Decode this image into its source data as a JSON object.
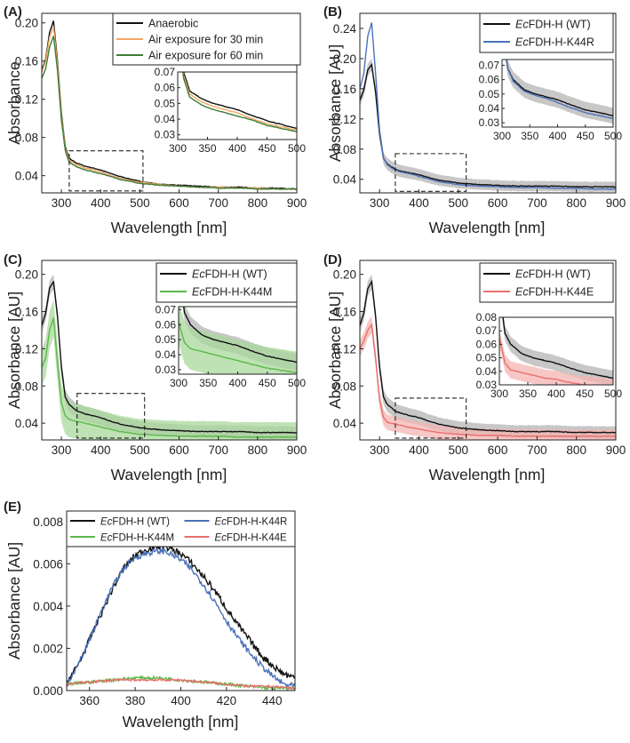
{
  "figure": {
    "colors": {
      "black": "#111111",
      "orange": "#f0a862",
      "darkgreen": "#3f7d35",
      "blue": "#4a72b8",
      "green": "#5cb84a",
      "red": "#e8706c",
      "band": "#b4b4b4",
      "greenband": "#a9d89c",
      "redband": "#f3b4b1"
    }
  },
  "chart_data": [
    {
      "panel": "(A)",
      "type": "line",
      "xlabel": "Wavelength [nm]",
      "ylabel": "Absorbance",
      "xlim": [
        250,
        900
      ],
      "ylim": [
        0.022,
        0.21
      ],
      "xticks": [
        300,
        400,
        500,
        600,
        700,
        800,
        900
      ],
      "xtick_labels": [
        "300",
        "400",
        "500",
        "600",
        "700",
        "800",
        "900"
      ],
      "yticks": [
        0.04,
        0.08,
        0.12,
        0.16,
        0.2
      ],
      "ytick_labels": [
        "0.04",
        "0.08",
        "0.12",
        "0.16",
        "0.20"
      ],
      "legend_position": "top-right",
      "series": [
        {
          "name": "Anaerobic",
          "color_key": "black",
          "x": [
            250,
            260,
            270,
            280,
            290,
            300,
            310,
            320,
            340,
            360,
            380,
            400,
            420,
            450,
            500,
            550,
            600,
            650,
            700,
            750,
            800,
            850,
            900
          ],
          "y": [
            0.15,
            0.162,
            0.19,
            0.202,
            0.16,
            0.105,
            0.07,
            0.058,
            0.053,
            0.05,
            0.048,
            0.046,
            0.043,
            0.039,
            0.034,
            0.031,
            0.03,
            0.029,
            0.028,
            0.028,
            0.027,
            0.027,
            0.026
          ]
        },
        {
          "name": "Air exposure for 30 min",
          "color_key": "orange",
          "x": [
            250,
            260,
            270,
            280,
            290,
            300,
            310,
            320,
            340,
            360,
            380,
            400,
            420,
            450,
            500,
            550,
            600,
            650,
            700,
            750,
            800,
            850,
            900
          ],
          "y": [
            0.148,
            0.16,
            0.185,
            0.196,
            0.156,
            0.102,
            0.068,
            0.056,
            0.051,
            0.048,
            0.046,
            0.044,
            0.041,
            0.037,
            0.033,
            0.031,
            0.029,
            0.028,
            0.028,
            0.027,
            0.027,
            0.026,
            0.026
          ]
        },
        {
          "name": "Air exposure for 60 min",
          "color_key": "darkgreen",
          "x": [
            250,
            260,
            270,
            280,
            290,
            300,
            310,
            320,
            340,
            360,
            380,
            400,
            420,
            450,
            500,
            550,
            600,
            650,
            700,
            750,
            800,
            850,
            900
          ],
          "y": [
            0.142,
            0.152,
            0.175,
            0.186,
            0.15,
            0.098,
            0.066,
            0.054,
            0.049,
            0.046,
            0.044,
            0.042,
            0.04,
            0.036,
            0.032,
            0.03,
            0.029,
            0.028,
            0.027,
            0.027,
            0.026,
            0.026,
            0.026
          ]
        }
      ],
      "inset": {
        "xlim": [
          300,
          500
        ],
        "ylim": [
          0.027,
          0.07
        ],
        "xticks": [
          300,
          350,
          400,
          450,
          500
        ],
        "xtick_labels": [
          "300",
          "350",
          "400",
          "450",
          "500"
        ],
        "yticks": [
          0.03,
          0.04,
          0.05,
          0.06,
          0.07
        ],
        "ytick_labels": [
          "0.03",
          "0.04",
          "0.05",
          "0.06",
          "0.07"
        ]
      }
    },
    {
      "panel": "(B)",
      "type": "line",
      "xlabel": "Wavelength [nm]",
      "ylabel": "Absorbance [AU]",
      "xlim": [
        250,
        900
      ],
      "ylim": [
        0.022,
        0.26
      ],
      "xticks": [
        300,
        400,
        500,
        600,
        700,
        800,
        900
      ],
      "xtick_labels": [
        "300",
        "400",
        "500",
        "600",
        "700",
        "800",
        "900"
      ],
      "yticks": [
        0.04,
        0.08,
        0.12,
        0.16,
        0.2,
        0.24
      ],
      "ytick_labels": [
        "0.04",
        "0.08",
        "0.12",
        "0.16",
        "0.20",
        "0.24"
      ],
      "legend_position": "top-right",
      "series": [
        {
          "name": "FDH-H (WT)",
          "italic_prefix": "Ec",
          "color_key": "black",
          "band_key": "band",
          "band": 0.008,
          "x": [
            250,
            260,
            270,
            280,
            290,
            300,
            310,
            320,
            340,
            360,
            380,
            400,
            420,
            450,
            500,
            550,
            600,
            650,
            700,
            750,
            800,
            850,
            900
          ],
          "y": [
            0.145,
            0.158,
            0.185,
            0.192,
            0.155,
            0.1,
            0.068,
            0.06,
            0.053,
            0.05,
            0.048,
            0.046,
            0.043,
            0.039,
            0.035,
            0.033,
            0.032,
            0.031,
            0.031,
            0.031,
            0.03,
            0.03,
            0.03
          ]
        },
        {
          "name": "FDH-H-K44R",
          "italic_prefix": "Ec",
          "color_key": "blue",
          "x": [
            250,
            260,
            270,
            280,
            290,
            300,
            310,
            320,
            340,
            360,
            380,
            400,
            420,
            450,
            500,
            550,
            600,
            650,
            700,
            750,
            800,
            850,
            900
          ],
          "y": [
            0.16,
            0.18,
            0.23,
            0.248,
            0.18,
            0.105,
            0.068,
            0.059,
            0.052,
            0.049,
            0.047,
            0.044,
            0.041,
            0.037,
            0.033,
            0.031,
            0.03,
            0.029,
            0.029,
            0.028,
            0.028,
            0.027,
            0.027
          ]
        }
      ],
      "inset": {
        "xlim": [
          300,
          500
        ],
        "ylim": [
          0.027,
          0.074
        ],
        "xticks": [
          300,
          350,
          400,
          450,
          500
        ],
        "xtick_labels": [
          "300",
          "350",
          "400",
          "450",
          "500"
        ],
        "yticks": [
          0.03,
          0.04,
          0.05,
          0.06,
          0.07
        ],
        "ytick_labels": [
          "0.03",
          "0.04",
          "0.05",
          "0.06",
          "0.07"
        ]
      }
    },
    {
      "panel": "(C)",
      "type": "line",
      "xlabel": "Wavelength [nm]",
      "ylabel": "Absorbance [AU]",
      "xlim": [
        250,
        900
      ],
      "ylim": [
        0.022,
        0.215
      ],
      "xticks": [
        300,
        400,
        500,
        600,
        700,
        800,
        900
      ],
      "xtick_labels": [
        "300",
        "400",
        "500",
        "600",
        "700",
        "800",
        "900"
      ],
      "yticks": [
        0.04,
        0.08,
        0.12,
        0.16,
        0.2
      ],
      "ytick_labels": [
        "0.04",
        "0.08",
        "0.12",
        "0.16",
        "0.20"
      ],
      "legend_position": "top-right",
      "series": [
        {
          "name": "FDH-H (WT)",
          "italic_prefix": "Ec",
          "color_key": "black",
          "band_key": "band",
          "band": 0.008,
          "x": [
            250,
            260,
            270,
            280,
            290,
            300,
            310,
            320,
            340,
            360,
            380,
            400,
            420,
            450,
            500,
            550,
            600,
            650,
            700,
            750,
            800,
            850,
            900
          ],
          "y": [
            0.145,
            0.158,
            0.185,
            0.192,
            0.155,
            0.1,
            0.068,
            0.06,
            0.053,
            0.05,
            0.048,
            0.046,
            0.043,
            0.039,
            0.035,
            0.033,
            0.032,
            0.031,
            0.031,
            0.031,
            0.03,
            0.03,
            0.03
          ]
        },
        {
          "name": "FDH-H-K44M",
          "italic_prefix": "Ec",
          "color_key": "green",
          "band_key": "greenband",
          "band": 0.02,
          "x": [
            250,
            260,
            270,
            280,
            290,
            300,
            310,
            320,
            340,
            360,
            380,
            400,
            420,
            450,
            500,
            550,
            600,
            650,
            700,
            750,
            800,
            850,
            900
          ],
          "y": [
            0.1,
            0.11,
            0.14,
            0.153,
            0.105,
            0.062,
            0.048,
            0.044,
            0.042,
            0.04,
            0.038,
            0.036,
            0.034,
            0.031,
            0.028,
            0.027,
            0.026,
            0.026,
            0.026,
            0.025,
            0.025,
            0.025,
            0.025
          ]
        }
      ],
      "inset": {
        "xlim": [
          300,
          500
        ],
        "ylim": [
          0.027,
          0.072
        ],
        "xticks": [
          300,
          350,
          400,
          450,
          500
        ],
        "xtick_labels": [
          "300",
          "350",
          "400",
          "450",
          "500"
        ],
        "yticks": [
          0.03,
          0.04,
          0.05,
          0.06,
          0.07
        ],
        "ytick_labels": [
          "0.03",
          "0.04",
          "0.05",
          "0.06",
          "0.07"
        ]
      }
    },
    {
      "panel": "(D)",
      "type": "line",
      "xlabel": "Wavelength [nm]",
      "ylabel": "Absorbance [AU]",
      "xlim": [
        250,
        900
      ],
      "ylim": [
        0.022,
        0.215
      ],
      "xticks": [
        300,
        400,
        500,
        600,
        700,
        800,
        900
      ],
      "xtick_labels": [
        "300",
        "400",
        "500",
        "600",
        "700",
        "800",
        "900"
      ],
      "yticks": [
        0.04,
        0.08,
        0.12,
        0.16,
        0.2
      ],
      "ytick_labels": [
        "0.04",
        "0.08",
        "0.12",
        "0.16",
        "0.20"
      ],
      "legend_position": "top-right",
      "series": [
        {
          "name": "FDH-H (WT)",
          "italic_prefix": "Ec",
          "color_key": "black",
          "band_key": "band",
          "band": 0.008,
          "x": [
            250,
            260,
            270,
            280,
            290,
            300,
            310,
            320,
            340,
            360,
            380,
            400,
            420,
            450,
            500,
            550,
            600,
            650,
            700,
            750,
            800,
            850,
            900
          ],
          "y": [
            0.145,
            0.158,
            0.185,
            0.192,
            0.155,
            0.1,
            0.068,
            0.06,
            0.053,
            0.05,
            0.048,
            0.046,
            0.043,
            0.039,
            0.035,
            0.033,
            0.032,
            0.031,
            0.031,
            0.031,
            0.03,
            0.03,
            0.03
          ]
        },
        {
          "name": "FDH-H-K44E",
          "italic_prefix": "Ec",
          "color_key": "red",
          "band_key": "redband",
          "band": 0.009,
          "x": [
            250,
            260,
            270,
            280,
            290,
            300,
            310,
            320,
            340,
            360,
            380,
            400,
            420,
            450,
            500,
            550,
            600,
            650,
            700,
            750,
            800,
            850,
            900
          ],
          "y": [
            0.12,
            0.128,
            0.14,
            0.146,
            0.11,
            0.065,
            0.046,
            0.041,
            0.039,
            0.037,
            0.035,
            0.034,
            0.032,
            0.03,
            0.028,
            0.027,
            0.027,
            0.026,
            0.026,
            0.026,
            0.026,
            0.026,
            0.026
          ]
        }
      ],
      "inset": {
        "xlim": [
          300,
          500
        ],
        "ylim": [
          0.03,
          0.08
        ],
        "xticks": [
          300,
          350,
          400,
          450,
          500
        ],
        "xtick_labels": [
          "300",
          "350",
          "400",
          "450",
          "500"
        ],
        "yticks": [
          0.03,
          0.04,
          0.05,
          0.06,
          0.07,
          0.08
        ],
        "ytick_labels": [
          "0.03",
          "0.04",
          "0.05",
          "0.06",
          "0.07",
          "0.08"
        ]
      }
    },
    {
      "panel": "(E)",
      "type": "line",
      "xlabel": "Wavelength [nm]",
      "ylabel": "Absorbance [AU]",
      "xlim": [
        350,
        450
      ],
      "ylim": [
        0,
        0.0085
      ],
      "xticks": [
        360,
        380,
        400,
        420,
        440
      ],
      "xtick_labels": [
        "360",
        "380",
        "400",
        "420",
        "440"
      ],
      "yticks": [
        0,
        0.002,
        0.004,
        0.006,
        0.008
      ],
      "ytick_labels": [
        "0.000",
        "0.002",
        "0.004",
        "0.006",
        "0.008"
      ],
      "legend_position": "top",
      "series": [
        {
          "name": "FDH-H (WT)",
          "italic_prefix": "Ec",
          "color_key": "black",
          "noise": 0.00016,
          "x": [
            350,
            355,
            360,
            365,
            370,
            375,
            380,
            385,
            390,
            393,
            395,
            400,
            405,
            410,
            415,
            420,
            425,
            430,
            435,
            440,
            445,
            450
          ],
          "y": [
            0.0004,
            0.0012,
            0.0024,
            0.0036,
            0.0048,
            0.0058,
            0.0064,
            0.0067,
            0.0068,
            0.0069,
            0.0067,
            0.0065,
            0.006,
            0.0054,
            0.0047,
            0.0039,
            0.0031,
            0.0024,
            0.0017,
            0.0012,
            0.0008,
            0.0006
          ]
        },
        {
          "name": "FDH-H-K44R",
          "italic_prefix": "Ec",
          "color_key": "blue",
          "noise": 0.00014,
          "x": [
            350,
            355,
            360,
            365,
            370,
            375,
            380,
            385,
            390,
            393,
            395,
            400,
            405,
            410,
            415,
            420,
            425,
            430,
            435,
            440,
            445,
            450
          ],
          "y": [
            0.0003,
            0.0012,
            0.0024,
            0.0037,
            0.0049,
            0.0058,
            0.0063,
            0.0065,
            0.0066,
            0.0066,
            0.0065,
            0.0062,
            0.0057,
            0.005,
            0.0042,
            0.0033,
            0.0025,
            0.0018,
            0.0012,
            0.0007,
            0.0003,
            0.0002
          ]
        },
        {
          "name": "FDH-H-K44M",
          "italic_prefix": "Ec",
          "color_key": "green",
          "noise": 7e-05,
          "x": [
            350,
            360,
            370,
            380,
            390,
            400,
            410,
            420,
            430,
            440,
            450
          ],
          "y": [
            0.0003,
            0.0004,
            0.0005,
            0.0006,
            0.0006,
            0.0005,
            0.0004,
            0.0003,
            0.0002,
            0.0001,
            0.0001
          ]
        },
        {
          "name": "FDH-H-K44E",
          "italic_prefix": "Ec",
          "color_key": "red",
          "noise": 5e-05,
          "x": [
            350,
            360,
            370,
            380,
            390,
            400,
            410,
            420,
            430,
            440,
            450
          ],
          "y": [
            0.0003,
            0.0004,
            0.0005,
            0.0005,
            0.0005,
            0.0005,
            0.0004,
            0.0003,
            0.0002,
            0.0002,
            0.0001
          ]
        }
      ]
    }
  ]
}
